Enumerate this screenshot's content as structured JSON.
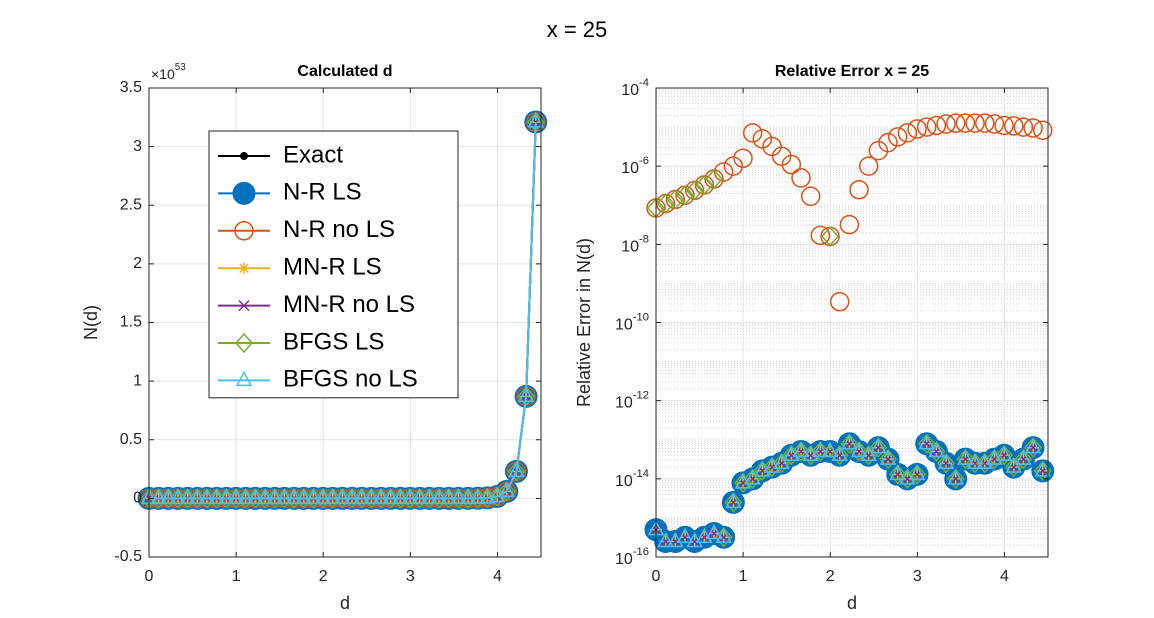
{
  "title": "x = 25",
  "chart_data": [
    {
      "type": "line",
      "title": "Calculated d",
      "xlabel": "d",
      "ylabel": "N(d)",
      "y_multiplier": "×10^53",
      "xlim": [
        0,
        4.5
      ],
      "xticks": [
        0,
        1,
        2,
        3,
        4
      ],
      "ylim": [
        -0.5,
        3.5
      ],
      "yticks": [
        -0.5,
        0,
        0.5,
        1,
        1.5,
        2,
        2.5,
        3,
        3.5
      ],
      "grid": true,
      "log_y": false,
      "lines": true,
      "legend_location": "northwest",
      "x": [
        0,
        0.111,
        0.222,
        0.333,
        0.444,
        0.555,
        0.666,
        0.777,
        0.888,
        0.999,
        1.11,
        1.221,
        1.332,
        1.443,
        1.554,
        1.665,
        1.776,
        1.887,
        1.998,
        2.109,
        2.22,
        2.331,
        2.442,
        2.553,
        2.664,
        2.775,
        2.886,
        2.997,
        3.108,
        3.219,
        3.33,
        3.441,
        3.552,
        3.663,
        3.774,
        3.885,
        3.996,
        4.107,
        4.218,
        4.329,
        4.44
      ],
      "series": [
        {
          "name": "Exact",
          "color": "#000000",
          "marker": "dot",
          "values": [
            0,
            0,
            0,
            0,
            0,
            0,
            0,
            0,
            0,
            0,
            0,
            0,
            0,
            0,
            0,
            0,
            0,
            0,
            0,
            0,
            0,
            0,
            0,
            0,
            0,
            0,
            0,
            0,
            0,
            0,
            0,
            0,
            0,
            0,
            0.001,
            0.004,
            0.016,
            0.06,
            0.23,
            0.87,
            3.21
          ]
        },
        {
          "name": "N-R LS",
          "color": "#0072bd",
          "marker": "filled-circle",
          "values": [
            0,
            0,
            0,
            0,
            0,
            0,
            0,
            0,
            0,
            0,
            0,
            0,
            0,
            0,
            0,
            0,
            0,
            0,
            0,
            0,
            0,
            0,
            0,
            0,
            0,
            0,
            0,
            0,
            0,
            0,
            0,
            0,
            0,
            0,
            0.001,
            0.004,
            0.016,
            0.06,
            0.23,
            0.87,
            3.21
          ]
        },
        {
          "name": "N-R no LS",
          "color": "#d95319",
          "marker": "circle",
          "values": [
            0,
            0,
            0,
            0,
            0,
            0,
            0,
            0,
            0,
            0,
            0,
            0,
            0,
            0,
            0,
            0,
            0,
            0,
            0,
            0,
            0,
            0,
            0,
            0,
            0,
            0,
            0,
            0,
            0,
            0,
            0,
            0,
            0,
            0,
            0.001,
            0.004,
            0.016,
            0.06,
            0.23,
            0.87,
            3.21
          ]
        },
        {
          "name": "MN-R LS",
          "color": "#edb120",
          "marker": "asterisk",
          "values": [
            0,
            0,
            0,
            0,
            0,
            0,
            0,
            0,
            0,
            0,
            0,
            0,
            0,
            0,
            0,
            0,
            0,
            0,
            0,
            0,
            0,
            0,
            0,
            0,
            0,
            0,
            0,
            0,
            0,
            0,
            0,
            0,
            0,
            0,
            0.001,
            0.004,
            0.016,
            0.06,
            0.23,
            0.87,
            3.21
          ]
        },
        {
          "name": "MN-R no LS",
          "color": "#7e2f8e",
          "marker": "x",
          "values": [
            0,
            0,
            0,
            0,
            0,
            0,
            0,
            0,
            0,
            0,
            0,
            0,
            0,
            0,
            0,
            0,
            0,
            0,
            0,
            0,
            0,
            0,
            0,
            0,
            0,
            0,
            0,
            0,
            0,
            0,
            0,
            0,
            0,
            0,
            0.001,
            0.004,
            0.016,
            0.06,
            0.23,
            0.87,
            3.21
          ]
        },
        {
          "name": "BFGS LS",
          "color": "#77ac30",
          "marker": "diamond",
          "values": [
            0,
            0,
            0,
            0,
            0,
            0,
            0,
            0,
            0,
            0,
            0,
            0,
            0,
            0,
            0,
            0,
            0,
            0,
            0,
            0,
            0,
            0,
            0,
            0,
            0,
            0,
            0,
            0,
            0,
            0,
            0,
            0,
            0,
            0,
            0.001,
            0.004,
            0.016,
            0.06,
            0.23,
            0.87,
            3.21
          ]
        },
        {
          "name": "BFGS no LS",
          "color": "#4dbeee",
          "marker": "triangle",
          "values": [
            0,
            0,
            0,
            0,
            0,
            0,
            0,
            0,
            0,
            0,
            0,
            0,
            0,
            0,
            0,
            0,
            0,
            0,
            0,
            0,
            0,
            0,
            0,
            0,
            0,
            0,
            0,
            0,
            0,
            0,
            0,
            0,
            0,
            0,
            0.001,
            0.004,
            0.016,
            0.06,
            0.23,
            0.87,
            3.21
          ]
        }
      ]
    },
    {
      "type": "scatter",
      "title": "Relative Error x = 25",
      "xlabel": "d",
      "ylabel": "Relative Error in N(d)",
      "xlim": [
        0,
        4.5
      ],
      "xticks": [
        0,
        1,
        2,
        3,
        4
      ],
      "ylim": [
        1e-16,
        0.0001
      ],
      "yticks": [
        {
          "value": 1e-16,
          "label": "10^-16"
        },
        {
          "value": 1e-14,
          "label": "10^-14"
        },
        {
          "value": 1e-12,
          "label": "10^-12"
        },
        {
          "value": 1e-10,
          "label": "10^-10"
        },
        {
          "value": 1e-08,
          "label": "10^-8"
        },
        {
          "value": 1e-06,
          "label": "10^-6"
        },
        {
          "value": 0.0001,
          "label": "10^-4"
        }
      ],
      "grid": true,
      "log_y": true,
      "lines": false,
      "x": [
        0,
        0.111,
        0.222,
        0.333,
        0.444,
        0.555,
        0.666,
        0.777,
        0.888,
        0.999,
        1.11,
        1.221,
        1.332,
        1.443,
        1.554,
        1.665,
        1.776,
        1.887,
        1.998,
        2.109,
        2.22,
        2.331,
        2.442,
        2.553,
        2.664,
        2.775,
        2.886,
        2.997,
        3.108,
        3.219,
        3.33,
        3.441,
        3.552,
        3.663,
        3.774,
        3.885,
        3.996,
        4.107,
        4.218,
        4.329,
        4.44
      ],
      "series": [
        {
          "name": "N-R LS",
          "color": "#0072bd",
          "marker": "filled-circle",
          "values": [
            5e-16,
            2.5e-16,
            2.5e-16,
            3.2e-16,
            2.5e-16,
            3.2e-16,
            4e-16,
            3.2e-16,
            2.5e-15,
            7.9e-15,
            1e-14,
            1.6e-14,
            2e-14,
            2.5e-14,
            4e-14,
            5e-14,
            4e-14,
            5e-14,
            5e-14,
            4e-14,
            7.9e-14,
            5e-14,
            4e-14,
            6.3e-14,
            3.2e-14,
            1.3e-14,
            1e-14,
            1.3e-14,
            7.9e-14,
            5e-14,
            2.5e-14,
            1e-14,
            3.2e-14,
            2.5e-14,
            2.5e-14,
            3.2e-14,
            4e-14,
            2e-14,
            3.2e-14,
            6.3e-14,
            1.6e-14
          ]
        },
        {
          "name": "N-R no LS",
          "color": "#d95319",
          "marker": "circle",
          "values": [
            8.5e-08,
            1.1e-07,
            1.4e-07,
            1.8e-07,
            2.4e-07,
            3.3e-07,
            4.7e-07,
            7.1e-07,
            1e-06,
            1.6e-06,
            7.1e-06,
            5e-06,
            3.2e-06,
            1.8e-06,
            1.1e-06,
            5e-07,
            1.7e-07,
            1.7e-08,
            1.6e-08,
            3.4e-10,
            3.2e-08,
            2.5e-07,
            1e-06,
            2.5e-06,
            4e-06,
            5.6e-06,
            7.1e-06,
            8.9e-06,
            1e-05,
            1.1e-05,
            1.2e-05,
            1.26e-05,
            1.26e-05,
            1.26e-05,
            1.26e-05,
            1.2e-05,
            1.1e-05,
            1.07e-05,
            1e-05,
            9.5e-06,
            8.3e-06
          ]
        },
        {
          "name": "MN-R LS",
          "color": "#edb120",
          "marker": "asterisk",
          "values": [
            5e-16,
            2.5e-16,
            2.5e-16,
            3.2e-16,
            2.5e-16,
            3.2e-16,
            4e-16,
            3.2e-16,
            2.5e-15,
            7.9e-15,
            1e-14,
            1.6e-14,
            2e-14,
            2.5e-14,
            4e-14,
            5e-14,
            4e-14,
            5e-14,
            5e-14,
            4e-14,
            7.9e-14,
            5e-14,
            4e-14,
            6.3e-14,
            3.2e-14,
            1.3e-14,
            1e-14,
            1.3e-14,
            7.9e-14,
            5e-14,
            2.5e-14,
            1e-14,
            3.2e-14,
            2.5e-14,
            2.5e-14,
            3.2e-14,
            4e-14,
            2e-14,
            3.2e-14,
            6.3e-14,
            1.6e-14
          ]
        },
        {
          "name": "MN-R no LS",
          "color": "#7e2f8e",
          "marker": "x",
          "values": [
            5e-16,
            2.5e-16,
            2.5e-16,
            3.2e-16,
            2.5e-16,
            3.2e-16,
            4e-16,
            3.2e-16,
            2.5e-15,
            7.9e-15,
            1e-14,
            1.6e-14,
            2e-14,
            2.5e-14,
            4e-14,
            5e-14,
            4e-14,
            5e-14,
            5e-14,
            4e-14,
            7.9e-14,
            5e-14,
            4e-14,
            6.3e-14,
            3.2e-14,
            1.3e-14,
            1e-14,
            1.3e-14,
            7.9e-14,
            5e-14,
            2.5e-14,
            1e-14,
            3.2e-14,
            2.5e-14,
            2.5e-14,
            3.2e-14,
            4e-14,
            2e-14,
            3.2e-14,
            6.3e-14,
            1.6e-14
          ]
        },
        {
          "name": "BFGS LS",
          "color": "#77ac30",
          "marker": "diamond",
          "values": [
            8.5e-08,
            1.1e-07,
            1.4e-07,
            1.8e-07,
            2.4e-07,
            3.3e-07,
            4.7e-07,
            3.2e-16,
            2.5e-15,
            7.9e-15,
            1e-14,
            1.6e-14,
            2e-14,
            2.5e-14,
            4e-14,
            5e-14,
            4e-14,
            5e-14,
            1.6e-08,
            4e-14,
            7.9e-14,
            5e-14,
            4e-14,
            6.3e-14,
            3.2e-14,
            1.3e-14,
            1e-14,
            1.3e-14,
            7.9e-14,
            5e-14,
            2.5e-14,
            1e-14,
            3.2e-14,
            2.5e-14,
            2.5e-14,
            3.2e-14,
            4e-14,
            2e-14,
            3.2e-14,
            6.3e-14,
            1.6e-14
          ]
        },
        {
          "name": "BFGS no LS",
          "color": "#4dbeee",
          "marker": "triangle",
          "values": [
            5e-16,
            2.5e-16,
            2.5e-16,
            3.2e-16,
            2.5e-16,
            3.2e-16,
            4e-16,
            3.2e-16,
            2.5e-15,
            7.9e-15,
            1e-14,
            1.6e-14,
            2e-14,
            2.5e-14,
            4e-14,
            5e-14,
            4e-14,
            5e-14,
            5e-14,
            4e-14,
            7.9e-14,
            5e-14,
            4e-14,
            6.3e-14,
            3.2e-14,
            1.3e-14,
            1e-14,
            1.3e-14,
            7.9e-14,
            5e-14,
            2.5e-14,
            1e-14,
            3.2e-14,
            2.5e-14,
            2.5e-14,
            3.2e-14,
            4e-14,
            2e-14,
            3.2e-14,
            6.3e-14,
            1.6e-14
          ]
        }
      ]
    }
  ]
}
